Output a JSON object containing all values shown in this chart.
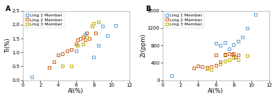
{
  "panel_A": {
    "ling1": {
      "Al": [
        1.0,
        6.0,
        7.0,
        8.0,
        8.5,
        9.5,
        10.5,
        9.0
      ],
      "Ti": [
        0.1,
        1.05,
        1.65,
        0.82,
        1.25,
        1.6,
        1.97,
        1.95
      ]
    },
    "ling2": {
      "Al": [
        3.0,
        3.5,
        4.0,
        4.5,
        5.0,
        5.5,
        6.0,
        6.2,
        6.5,
        6.8,
        7.0,
        7.2,
        7.5,
        7.8,
        8.0,
        8.2
      ],
      "Ti": [
        0.45,
        0.65,
        0.9,
        0.95,
        1.05,
        1.1,
        1.3,
        1.45,
        1.5,
        1.55,
        1.45,
        1.7,
        1.5,
        1.95,
        2.05,
        1.7
      ]
    },
    "ling3": {
      "Al": [
        4.5,
        5.5,
        6.2,
        6.8,
        7.2,
        7.8,
        8.0,
        8.5
      ],
      "Ti": [
        0.5,
        0.5,
        1.25,
        1.3,
        1.55,
        1.95,
        2.05,
        2.1
      ]
    }
  },
  "panel_B": {
    "ling1": {
      "Al": [
        1.0,
        6.0,
        6.5,
        7.0,
        7.5,
        8.0,
        8.5,
        9.0,
        9.5,
        10.5
      ],
      "Zr": [
        100,
        850,
        800,
        870,
        730,
        820,
        900,
        1000,
        1200,
        1520
      ]
    },
    "ling2": {
      "Al": [
        3.5,
        4.0,
        4.5,
        5.0,
        5.5,
        6.0,
        6.0,
        6.5,
        7.0,
        7.0,
        7.5,
        7.8,
        8.0,
        8.2,
        8.5
      ],
      "Zr": [
        280,
        320,
        310,
        290,
        310,
        340,
        580,
        420,
        580,
        590,
        610,
        590,
        610,
        540,
        580
      ]
    },
    "ling3": {
      "Al": [
        5.0,
        5.5,
        6.5,
        7.0,
        7.5,
        8.0,
        8.5,
        9.5
      ],
      "Zr": [
        270,
        250,
        380,
        430,
        470,
        520,
        470,
        570
      ]
    }
  },
  "colors": {
    "ling1": "#5b9bd5",
    "ling2": "#c55a11",
    "ling3": "#bfaa00"
  },
  "marker": "s",
  "markersize": 3.0,
  "markeredgewidth": 0.7,
  "xlabel": "Al(%)",
  "panel_A_ylabel": "Ti(%)",
  "panel_B_ylabel": "Zr(ppm)",
  "panel_A_xlim": [
    0,
    12
  ],
  "panel_A_ylim": [
    0,
    2.5
  ],
  "panel_B_xlim": [
    0,
    12
  ],
  "panel_B_ylim": [
    0,
    1600
  ],
  "panel_A_xticks": [
    0,
    2,
    4,
    6,
    8,
    10,
    12
  ],
  "panel_A_yticks": [
    0.0,
    0.5,
    1.0,
    1.5,
    2.0,
    2.5
  ],
  "panel_B_xticks": [
    0,
    2,
    4,
    6,
    8,
    10,
    12
  ],
  "panel_B_yticks": [
    0,
    400,
    800,
    1200,
    1600
  ],
  "legend_labels": [
    "Ling 1 Member",
    "Ling 2 Member",
    "Ling 3 Member"
  ],
  "panel_labels": [
    "A",
    "B"
  ],
  "background_color": "#ffffff",
  "spine_color": "#aaaaaa",
  "tick_label_fontsize": 5,
  "axis_label_fontsize": 6,
  "legend_fontsize": 4.5
}
